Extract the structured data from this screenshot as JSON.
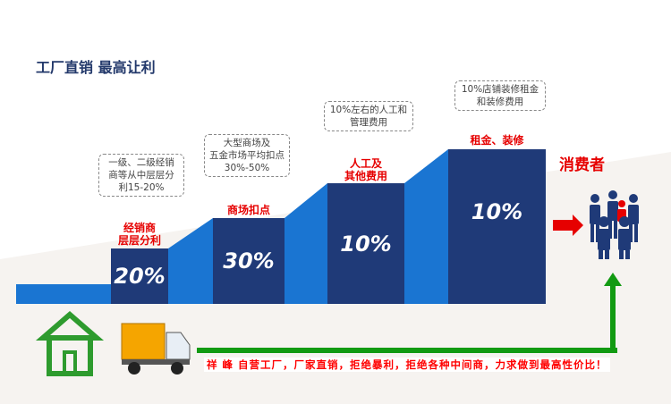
{
  "title": "工厂直销 最高让利",
  "steps": [
    {
      "label": "经销商\n层层分利",
      "value": "20%",
      "note": "一级、二级经销\n商等从中层层分\n利15-20%"
    },
    {
      "label": "商场扣点",
      "value": "30%",
      "note": "大型商场及\n五金市场平均扣点\n30%-50%"
    },
    {
      "label": "人工及\n其他费用",
      "value": "10%",
      "note": "10%左右的人工和\n管理费用"
    },
    {
      "label": "租金、装修",
      "value": "10%",
      "note": "10%店铺装修租金\n和装修费用"
    }
  ],
  "consumer": "消费者",
  "slogan": "祥 峰 自营工厂，厂家直销，拒绝暴利，拒绝各种中间商，力求做到最高性价比！",
  "colors": {
    "dark_blue": "#1f3a78",
    "light_blue": "#1a75d2",
    "red": "#e60000",
    "green": "#129a12"
  }
}
